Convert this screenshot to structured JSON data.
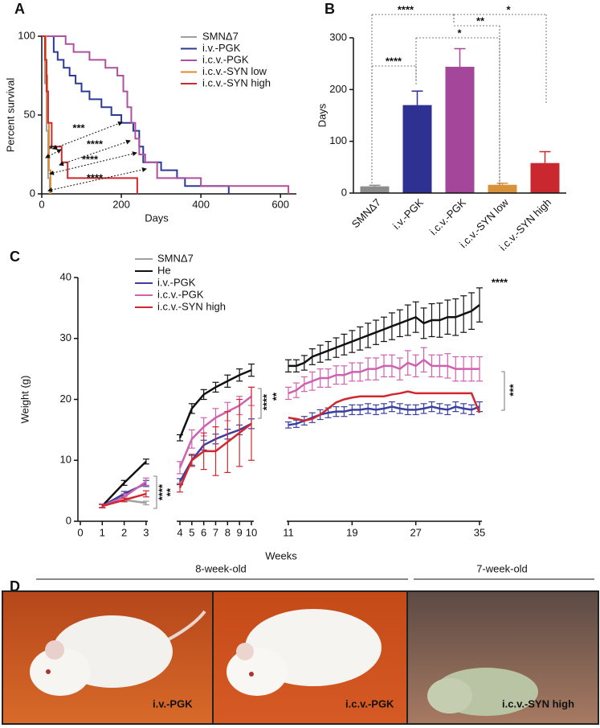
{
  "chart_data": [
    {
      "panel_label": "A",
      "type": "step",
      "xlabel": "Days",
      "ylabel": "Percent survival",
      "xlim": [
        0,
        640
      ],
      "ylim": [
        0,
        100
      ],
      "xticks": [
        0,
        200,
        400,
        600
      ],
      "yticks": [
        0,
        50,
        100
      ],
      "legend": "upper right",
      "annotations": [
        "***",
        "****",
        "**",
        "****",
        "****"
      ],
      "series": [
        {
          "name": "SMNΔ7",
          "color": "#a0a0a0",
          "x": [
            0,
            8,
            12,
            16,
            20
          ],
          "values": [
            100,
            70,
            40,
            10,
            0
          ]
        },
        {
          "name": "i.v.-PGK",
          "color": "#2b3a97",
          "x": [
            0,
            30,
            40,
            55,
            70,
            85,
            100,
            120,
            150,
            175,
            200,
            230,
            245,
            255,
            300,
            340,
            360,
            470
          ],
          "values": [
            100,
            90,
            85,
            80,
            75,
            70,
            65,
            60,
            55,
            50,
            45,
            40,
            30,
            20,
            15,
            10,
            5,
            0
          ]
        },
        {
          "name": "i.c.v.-PGK",
          "color": "#b0509f",
          "x": [
            0,
            60,
            80,
            120,
            160,
            190,
            205,
            215,
            225,
            235,
            245,
            260,
            290,
            400,
            620
          ],
          "values": [
            100,
            95,
            90,
            85,
            80,
            75,
            65,
            55,
            45,
            35,
            25,
            20,
            10,
            5,
            0
          ]
        },
        {
          "name": "i.c.v.-SYN low",
          "color": "#e08a2e",
          "x": [
            0,
            10,
            14,
            18,
            22
          ],
          "values": [
            100,
            75,
            45,
            15,
            0
          ]
        },
        {
          "name": "i.c.v.-SYN high",
          "color": "#d0282e",
          "x": [
            0,
            8,
            12,
            16,
            25,
            50,
            65,
            240
          ],
          "values": [
            100,
            85,
            65,
            45,
            30,
            20,
            10,
            0
          ]
        }
      ]
    },
    {
      "panel_label": "B",
      "type": "bar",
      "ylabel": "Days",
      "ylim": [
        0,
        300
      ],
      "yticks": [
        0,
        100,
        200,
        300
      ],
      "categories": [
        "SMNΔ7",
        "i.v.-PGK",
        "i.c.v.-PGK",
        "i.c.v.-SYN low",
        "i.c.v.-SYN high"
      ],
      "values": [
        13,
        170,
        244,
        16,
        58
      ],
      "errors": [
        2,
        27,
        35,
        3,
        22
      ],
      "colors": [
        "#8c8c8c",
        "#2e3192",
        "#a4479a",
        "#d8923a",
        "#c8282e"
      ],
      "annotations": [
        "****",
        "*",
        "**",
        "*",
        "****"
      ]
    },
    {
      "panel_label": "C",
      "type": "line",
      "xlabel": "Weeks",
      "ylabel": "Weight (g)",
      "ylim": [
        0,
        40
      ],
      "yticks": [
        0,
        10,
        20,
        30,
        40
      ],
      "xticks": [
        0,
        1,
        2,
        3,
        4,
        5,
        6,
        7,
        8,
        9,
        10,
        11,
        19,
        27,
        35
      ],
      "legend": "upper left",
      "x": [
        1,
        2,
        3,
        4,
        5,
        6,
        7,
        8,
        9,
        10,
        11,
        12,
        13,
        14,
        15,
        16,
        17,
        18,
        19,
        20,
        21,
        22,
        23,
        24,
        25,
        26,
        27,
        28,
        29,
        30,
        31,
        32,
        33,
        34,
        35
      ],
      "series": [
        {
          "name": "SMNΔ7",
          "color": "#a0a0a0",
          "values": [
            2.5,
            3.5,
            3,
            null,
            null,
            null,
            null,
            null,
            null,
            null,
            null,
            null,
            null,
            null,
            null,
            null,
            null,
            null,
            null,
            null,
            null,
            null,
            null,
            null,
            null,
            null,
            null,
            null,
            null,
            null,
            null,
            null,
            null,
            null,
            null
          ],
          "errors": [
            0.2,
            0.3,
            0.3,
            null,
            null,
            null,
            null,
            null,
            null,
            null,
            null,
            null,
            null,
            null,
            null,
            null,
            null,
            null,
            null,
            null,
            null,
            null,
            null,
            null,
            null,
            null,
            null,
            null,
            null,
            null,
            null,
            null,
            null,
            null,
            null
          ]
        },
        {
          "name": "He",
          "color": "#111111",
          "values": [
            2.5,
            6.3,
            9.8,
            13.7,
            18.5,
            20.8,
            22,
            23,
            24,
            24.8,
            25.5,
            25.5,
            26,
            27,
            27.5,
            28,
            28.5,
            29,
            29.5,
            30,
            30.5,
            31,
            31.5,
            32,
            32.5,
            33,
            33.5,
            32.5,
            33,
            33,
            33.5,
            33.5,
            34,
            34.5,
            35.5
          ],
          "errors": [
            0.3,
            0.4,
            0.4,
            0.5,
            0.8,
            0.8,
            0.8,
            1,
            1,
            1,
            1,
            1,
            1.2,
            1.3,
            1.4,
            1.5,
            1.6,
            1.7,
            1.8,
            1.9,
            2,
            2,
            2,
            2.2,
            2.2,
            2.5,
            2.5,
            2.5,
            2.7,
            2.8,
            2.8,
            3,
            3,
            3,
            2.8
          ]
        },
        {
          "name": "i.v.-PGK",
          "color": "#3a3fa0",
          "values": [
            2.5,
            4.5,
            6.2,
            6.5,
            10,
            12.5,
            13.5,
            14.3,
            15,
            16,
            15.8,
            16,
            16.5,
            17,
            17.5,
            17.8,
            18,
            18,
            18.3,
            18.3,
            18.5,
            18.3,
            18.5,
            18.8,
            18.5,
            18.3,
            18.3,
            18.5,
            18.8,
            18.5,
            18.3,
            18.8,
            18.5,
            18.3,
            18.8
          ],
          "errors": [
            0.3,
            0.4,
            0.5,
            0.5,
            0.8,
            0.8,
            0.8,
            0.8,
            0.8,
            0.8,
            0.5,
            0.6,
            0.7,
            0.8,
            0.8,
            0.8,
            0.8,
            0.8,
            0.8,
            0.8,
            0.8,
            0.8,
            0.8,
            0.8,
            0.8,
            0.8,
            0.8,
            0.8,
            0.8,
            0.8,
            0.8,
            0.8,
            0.8,
            0.8,
            0.8
          ]
        },
        {
          "name": "i.c.v.-PGK",
          "color": "#d060b0",
          "values": [
            2.5,
            4,
            6.5,
            8.8,
            13.5,
            15.5,
            17,
            18,
            19,
            20.5,
            21,
            21.5,
            22.5,
            23,
            23.5,
            23.5,
            24,
            24,
            24.5,
            24.5,
            25,
            25,
            25.5,
            25.5,
            25,
            26,
            25.5,
            26.5,
            25.5,
            25.5,
            25.5,
            25,
            25,
            25,
            25
          ],
          "errors": [
            0.3,
            0.5,
            0.6,
            1,
            1.5,
            1.5,
            1.5,
            1.5,
            1.5,
            1.5,
            1,
            1.2,
            1.2,
            1.5,
            1.5,
            1.5,
            1.5,
            1.5,
            1.5,
            1.5,
            1.8,
            1.8,
            1.8,
            1.8,
            1.8,
            2,
            1.8,
            2,
            1.8,
            1.8,
            2,
            2,
            2,
            2,
            2
          ]
        },
        {
          "name": "i.c.v.-SYN high",
          "color": "#d0282e",
          "values": [
            2.5,
            3.5,
            4.5,
            5.5,
            10,
            11.5,
            11.5,
            13,
            14.5,
            16,
            17,
            16.8,
            16.5,
            16.8,
            17.5,
            18.5,
            19.5,
            20,
            20.3,
            20.5,
            20.5,
            20.5,
            20.5,
            20.8,
            21,
            21.3,
            21,
            21,
            21,
            21,
            21,
            21,
            21,
            21,
            17.8
          ],
          "errors": [
            0.3,
            0.3,
            0.5,
            0.7,
            1,
            3,
            4,
            5,
            5.5,
            6,
            null,
            null,
            null,
            null,
            null,
            null,
            null,
            null,
            null,
            null,
            null,
            null,
            null,
            null,
            null,
            null,
            null,
            null,
            null,
            null,
            null,
            null,
            null,
            null,
            null
          ]
        }
      ],
      "annotations": [
        {
          "text": "****",
          "color": "#111111"
        },
        {
          "text": "***",
          "color": "#3a3fa0"
        },
        {
          "text": "****",
          "color": "#3a3fa0"
        },
        {
          "text": "**",
          "color": "#d0282e"
        },
        {
          "text": "****",
          "color": "#b0409a"
        },
        {
          "text": "**",
          "color": "#3a3fa0"
        }
      ]
    }
  ],
  "photos": {
    "panel_label": "D",
    "groups": [
      "8-week-old",
      "7-week-old"
    ],
    "labels": [
      "i.v.-PGK",
      "i.c.v.-PGK",
      "i.c.v.-SYN high"
    ]
  }
}
